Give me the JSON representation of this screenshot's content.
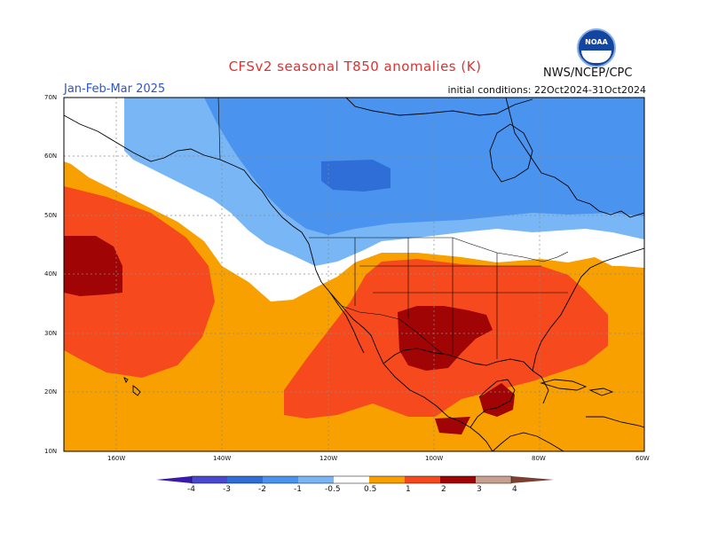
{
  "header": {
    "title": "CFSv2 seasonal T850 anomalies (K)",
    "period": "Jan-Feb-Mar 2025",
    "initial_conditions": "initial conditions: 22Oct2024-31Oct2024",
    "agency": "NWS/NCEP/CPC",
    "logo_text": "NOAA"
  },
  "axes": {
    "lat_labels": [
      "70N",
      "60N",
      "50N",
      "40N",
      "30N",
      "20N",
      "10N"
    ],
    "lon_labels": [
      "160W",
      "140W",
      "120W",
      "100W",
      "80W",
      "60W"
    ]
  },
  "colorbar": {
    "labels": [
      "-4",
      "-3",
      "-2",
      "-1",
      "-0.5",
      "0.5",
      "1",
      "2",
      "3",
      "4"
    ],
    "colors": [
      "#3a1aa8",
      "#4848d0",
      "#2f6ed6",
      "#4a93ee",
      "#79b6f5",
      "#ffffff",
      "#f7a000",
      "#f64a1e",
      "#a00404",
      "#c8a090",
      "#7a4030"
    ]
  },
  "colors": {
    "coast": "#000000",
    "grid": "#8a8a8a"
  }
}
